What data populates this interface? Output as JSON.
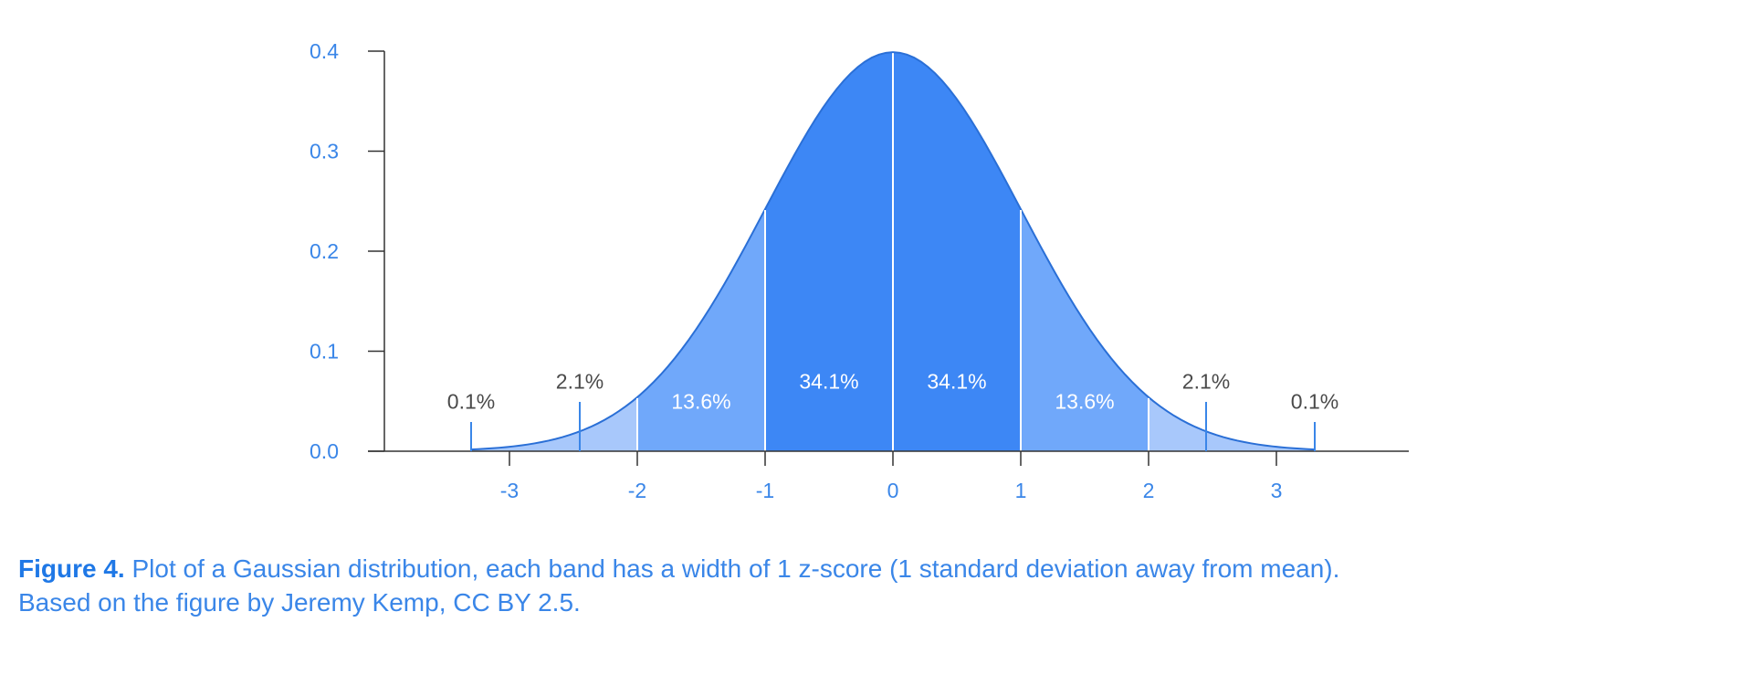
{
  "chart_data": {
    "type": "area",
    "distribution": "Gaussian (standard normal)",
    "x_ticks": [
      -3,
      -2,
      -1,
      0,
      1,
      2,
      3
    ],
    "x_tick_labels": [
      "-3",
      "-2",
      "-1",
      "0",
      "1",
      "2",
      "3"
    ],
    "y_ticks": [
      0.0,
      0.1,
      0.2,
      0.3,
      0.4
    ],
    "y_tick_labels": [
      "0.0",
      "0.1",
      "0.2",
      "0.3",
      "0.4"
    ],
    "xlim": [
      -3.9,
      4.0
    ],
    "ylim": [
      0,
      0.4
    ],
    "curve_x_range": [
      -3.3,
      3.3
    ],
    "bands": [
      {
        "from": -3.3,
        "to": -2,
        "shade": "light",
        "color": "#a8c8fb"
      },
      {
        "from": -2,
        "to": -1,
        "shade": "medium",
        "color": "#70a8fa"
      },
      {
        "from": -1,
        "to": 0,
        "shade": "dark",
        "color": "#3d87f5"
      },
      {
        "from": 0,
        "to": 1,
        "shade": "dark",
        "color": "#3d87f5"
      },
      {
        "from": 1,
        "to": 2,
        "shade": "medium",
        "color": "#70a8fa"
      },
      {
        "from": 2,
        "to": 3.3,
        "shade": "light",
        "color": "#a8c8fb"
      }
    ],
    "band_labels": [
      {
        "text": "0.1%",
        "x": -3.3,
        "y": 0.05,
        "marker_x": -3.3,
        "style": "dark"
      },
      {
        "text": "2.1%",
        "x": -2.45,
        "y": 0.07,
        "marker_x": -2.45,
        "style": "dark"
      },
      {
        "text": "13.6%",
        "x": -1.5,
        "y": 0.05,
        "style": "light"
      },
      {
        "text": "34.1%",
        "x": -0.5,
        "y": 0.07,
        "style": "light"
      },
      {
        "text": "34.1%",
        "x": 0.5,
        "y": 0.07,
        "style": "light"
      },
      {
        "text": "13.6%",
        "x": 1.5,
        "y": 0.05,
        "style": "light"
      },
      {
        "text": "2.1%",
        "x": 2.45,
        "y": 0.07,
        "marker_x": 2.45,
        "style": "dark"
      },
      {
        "text": "0.1%",
        "x": 3.3,
        "y": 0.05,
        "marker_x": 3.3,
        "style": "dark"
      }
    ],
    "colors": {
      "axis": "#333333",
      "tick_text": "#3a86e8",
      "curve_outline": "#2a6fd6",
      "divider": "#ffffff",
      "marker": "#3a86e8"
    },
    "grid": false
  },
  "caption": {
    "label": "Figure 4.",
    "line1": " Plot of a Gaussian distribution, each band has a width of 1 z-score (1 standard deviation away from mean).",
    "line2": "Based on the figure by Jeremy Kemp, CC BY 2.5."
  }
}
